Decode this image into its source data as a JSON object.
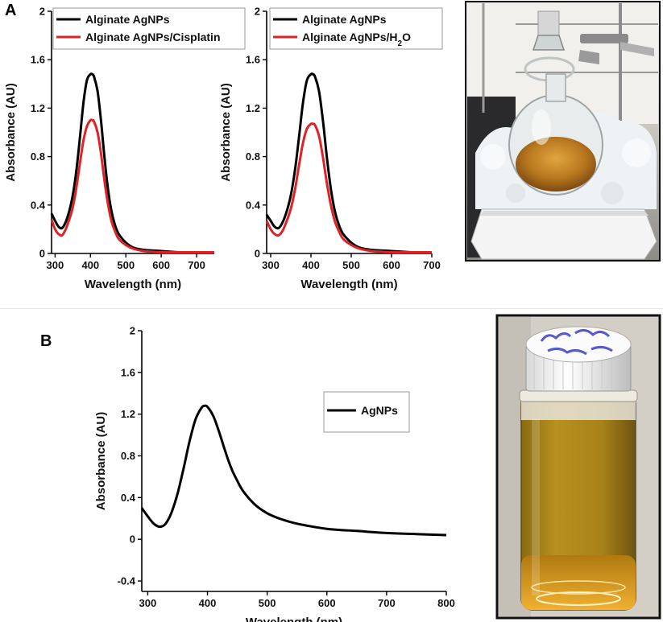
{
  "panels": {
    "a": "A",
    "b": "B"
  },
  "chart_data": [
    {
      "type": "line",
      "xlabel": "Wavelength (nm)",
      "ylabel": "Absorbance (AU)",
      "xlim": [
        290,
        750
      ],
      "ylim": [
        0,
        2
      ],
      "xticks": [
        300,
        400,
        500,
        600,
        700
      ],
      "yticks": [
        0,
        0.4,
        0.8,
        1.2,
        1.6,
        2
      ],
      "legend_position": "top",
      "series": [
        {
          "name": "Alginate AgNPs",
          "color": "#000000",
          "x": [
            290,
            300,
            310,
            320,
            330,
            340,
            350,
            360,
            370,
            380,
            390,
            400,
            405,
            410,
            420,
            430,
            440,
            450,
            460,
            470,
            480,
            500,
            520,
            550,
            600,
            650,
            700,
            750
          ],
          "y": [
            0.33,
            0.27,
            0.22,
            0.21,
            0.26,
            0.35,
            0.48,
            0.68,
            0.95,
            1.24,
            1.43,
            1.48,
            1.48,
            1.46,
            1.34,
            1.09,
            0.78,
            0.52,
            0.34,
            0.23,
            0.16,
            0.09,
            0.05,
            0.03,
            0.02,
            0.01,
            0.01,
            0.01
          ]
        },
        {
          "name": "Alginate AgNPs/Cisplatin",
          "color": "#dd2326",
          "x": [
            290,
            300,
            310,
            320,
            330,
            340,
            350,
            360,
            370,
            380,
            390,
            400,
            405,
            410,
            420,
            430,
            440,
            450,
            460,
            470,
            480,
            500,
            520,
            550,
            600,
            650,
            700,
            750
          ],
          "y": [
            0.28,
            0.2,
            0.16,
            0.15,
            0.2,
            0.28,
            0.38,
            0.54,
            0.74,
            0.93,
            1.05,
            1.1,
            1.1,
            1.09,
            1.0,
            0.82,
            0.59,
            0.4,
            0.26,
            0.18,
            0.12,
            0.07,
            0.04,
            0.02,
            0.01,
            0.01,
            0.01,
            0.01
          ]
        }
      ]
    },
    {
      "type": "line",
      "xlabel": "Wavelength (nm)",
      "ylabel": "Absorbance (AU)",
      "xlim": [
        290,
        700
      ],
      "ylim": [
        0,
        2
      ],
      "xticks": [
        300,
        400,
        500,
        600,
        700
      ],
      "yticks": [
        0,
        0.4,
        0.8,
        1.2,
        1.6,
        2
      ],
      "legend_position": "top",
      "series": [
        {
          "name": "Alginate AgNPs",
          "color": "#000000",
          "x": [
            290,
            300,
            310,
            320,
            330,
            340,
            350,
            360,
            370,
            380,
            390,
            400,
            405,
            410,
            420,
            430,
            440,
            450,
            460,
            470,
            480,
            500,
            520,
            550,
            600,
            650,
            700
          ],
          "y": [
            0.32,
            0.27,
            0.22,
            0.21,
            0.26,
            0.35,
            0.48,
            0.68,
            0.95,
            1.24,
            1.43,
            1.48,
            1.48,
            1.46,
            1.34,
            1.09,
            0.78,
            0.52,
            0.34,
            0.23,
            0.16,
            0.09,
            0.05,
            0.03,
            0.02,
            0.01,
            0.01
          ]
        },
        {
          "name": "Alginate AgNPs/H",
          "name_sub": "2",
          "name_tail": "O",
          "color": "#dd2326",
          "x": [
            290,
            300,
            310,
            320,
            330,
            340,
            350,
            360,
            370,
            380,
            390,
            400,
            405,
            410,
            420,
            430,
            440,
            450,
            460,
            470,
            480,
            500,
            520,
            550,
            600,
            650,
            700
          ],
          "y": [
            0.27,
            0.2,
            0.16,
            0.15,
            0.19,
            0.27,
            0.37,
            0.52,
            0.72,
            0.91,
            1.03,
            1.07,
            1.07,
            1.06,
            0.97,
            0.79,
            0.57,
            0.39,
            0.26,
            0.18,
            0.12,
            0.07,
            0.04,
            0.02,
            0.01,
            0.01,
            0.01
          ]
        }
      ]
    },
    {
      "type": "line",
      "xlabel": "Wavelength (nm)",
      "ylabel": "Absorbance (AU)",
      "xlim": [
        290,
        800
      ],
      "ylim": [
        -0.5,
        2
      ],
      "xticks": [
        300,
        400,
        500,
        600,
        700,
        800
      ],
      "yticks": [
        -0.4,
        0,
        0.4,
        0.8,
        1.2,
        1.6,
        2
      ],
      "legend_position": "right",
      "series": [
        {
          "name": "AgNPs",
          "color": "#000000",
          "legend_text_color": "#dd2326",
          "x": [
            290,
            300,
            310,
            320,
            330,
            340,
            350,
            360,
            370,
            380,
            390,
            395,
            400,
            410,
            420,
            430,
            440,
            450,
            460,
            480,
            500,
            520,
            550,
            600,
            650,
            700,
            750,
            800
          ],
          "y": [
            0.3,
            0.22,
            0.15,
            0.12,
            0.15,
            0.26,
            0.44,
            0.68,
            0.94,
            1.15,
            1.26,
            1.28,
            1.27,
            1.18,
            1.02,
            0.84,
            0.68,
            0.56,
            0.46,
            0.33,
            0.25,
            0.2,
            0.15,
            0.1,
            0.08,
            0.06,
            0.05,
            0.04
          ]
        }
      ]
    }
  ]
}
